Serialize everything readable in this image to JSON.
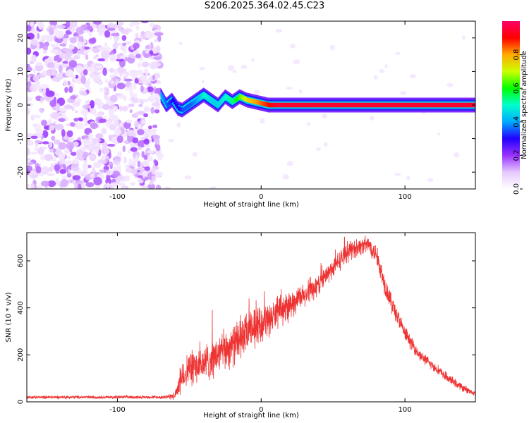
{
  "title": "S206.2025.364.02.45.C23",
  "chart_data": [
    {
      "type": "heatmap",
      "xlabel": "Height of straight line (km)",
      "ylabel": "Frequency (Hz)",
      "xlim": [
        -163,
        149
      ],
      "ylim": [
        -25,
        25
      ],
      "xticks": [
        -100,
        0,
        100
      ],
      "yticks": [
        -20,
        -10,
        0,
        10,
        20
      ],
      "colorbar": {
        "label": "Normalized spectral amplitude",
        "range": [
          0,
          1
        ],
        "ticks": [
          0.0,
          0.2,
          0.4,
          0.6,
          0.8
        ],
        "colors": [
          "#ffffff",
          "#e6c8ff",
          "#9933ff",
          "#2200ff",
          "#00aaff",
          "#00ffcc",
          "#00ff00",
          "#ccff00",
          "#ffaa00",
          "#ff0000",
          "#ff0066"
        ]
      },
      "noise_region_x": [
        -163,
        -70
      ],
      "ridge": {
        "x": [
          -70,
          -66,
          -62,
          -58,
          -55,
          -50,
          -45,
          -40,
          -35,
          -30,
          -25,
          -20,
          -15,
          -10,
          -5,
          0,
          5,
          10,
          149
        ],
        "freq": [
          3,
          0,
          1.5,
          -1,
          -1.5,
          0,
          1.5,
          3,
          1.5,
          0,
          2.5,
          1,
          2.5,
          1.5,
          1,
          0.5,
          0,
          0,
          0
        ],
        "amplitude": [
          0.4,
          0.35,
          0.3,
          0.3,
          0.35,
          0.35,
          0.4,
          0.5,
          0.45,
          0.45,
          0.5,
          0.55,
          0.65,
          0.75,
          0.8,
          0.85,
          0.9,
          0.95,
          0.95
        ]
      }
    },
    {
      "type": "line",
      "xlabel": "Height of straight line (km)",
      "ylabel": "SNR (10 * v/v)",
      "xlim": [
        -163,
        149
      ],
      "ylim": [
        0,
        720
      ],
      "xticks": [
        -100,
        0,
        100
      ],
      "yticks": [
        0,
        200,
        400,
        600
      ],
      "color": "#ee3333",
      "envelope": {
        "x": [
          -163,
          -70,
          -60,
          -55,
          -50,
          -40,
          -30,
          -20,
          -10,
          0,
          10,
          20,
          30,
          40,
          50,
          60,
          70,
          75,
          80,
          85,
          90,
          95,
          100,
          110,
          120,
          130,
          140,
          149
        ],
        "mean": [
          20,
          20,
          25,
          110,
          140,
          160,
          200,
          240,
          290,
          330,
          370,
          410,
          450,
          500,
          570,
          640,
          665,
          670,
          630,
          520,
          430,
          360,
          290,
          200,
          150,
          100,
          60,
          35
        ],
        "noise": [
          6,
          6,
          15,
          60,
          70,
          75,
          80,
          80,
          80,
          70,
          60,
          55,
          50,
          45,
          40,
          40,
          35,
          35,
          40,
          45,
          40,
          35,
          30,
          22,
          20,
          18,
          15,
          10
        ]
      }
    }
  ]
}
